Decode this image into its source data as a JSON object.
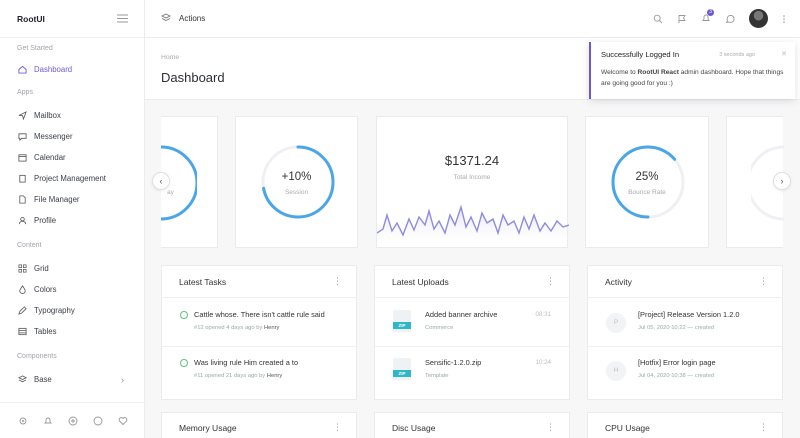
{
  "brand": "RootUI",
  "topbar": {
    "actions_label": "Actions",
    "notif_count": "3"
  },
  "sidebar": {
    "get_started": "Get Started",
    "dashboard": "Dashboard",
    "apps": "Apps",
    "app_items": [
      "Mailbox",
      "Messenger",
      "Calendar",
      "Project Management",
      "File Manager",
      "Profile"
    ],
    "content": "Content",
    "content_items": [
      "Grid",
      "Colors",
      "Typography",
      "Tables"
    ],
    "components": "Components",
    "base": "Base"
  },
  "header": {
    "breadcrumb": "Home",
    "title": "Dashboard"
  },
  "toast": {
    "title": "Successfully Logged In",
    "time": "3 seconds ago",
    "body_prefix": "Welcome to ",
    "body_strong": "RootUI React",
    "body_suffix": " admin dashboard. Hope that things are going good for you :)"
  },
  "stats": {
    "left_partial_label": "ay",
    "session_value": "+10%",
    "session_label": "Session",
    "income_value": "$1371.24",
    "income_label": "Total Income",
    "bounce_value": "25%",
    "bounce_label": "Bounce Rate",
    "session_pct": 0.72,
    "bounce_pct": 0.25
  },
  "tasks": {
    "title": "Latest Tasks",
    "items": [
      {
        "text": "Cattle whose. There isn't cattle rule said",
        "num": "#12",
        "meta": "opened 4 days ago by",
        "user": "Henry"
      },
      {
        "text": "Was living rule Him created a to",
        "num": "#11",
        "meta": "opened 21 days ago by",
        "user": "Henry"
      }
    ]
  },
  "uploads": {
    "title": "Latest Uploads",
    "items": [
      {
        "name": "Added banner archive",
        "cat": "Commerce",
        "time": "08:31",
        "tag": "ZIP"
      },
      {
        "name": "Sensific-1.2.0.zip",
        "cat": "Template",
        "time": "10:24",
        "tag": "ZIP"
      }
    ]
  },
  "activity": {
    "title": "Activity",
    "items": [
      {
        "initial": "P",
        "text": "[Project] Release Version 1.2.0",
        "meta": "Jul 05, 2020 10:22 — created"
      },
      {
        "initial": "H",
        "text": "[Hotfix] Error login page",
        "meta": "Jul 04, 2020 10:38 — created"
      }
    ]
  },
  "bottom_panels": [
    "Memory Usage",
    "Disc Usage",
    "CPU Usage"
  ],
  "colors": {
    "accent": "#6a58d8",
    "ring": "#4aa6e8",
    "wave": "#8e8cdc"
  }
}
